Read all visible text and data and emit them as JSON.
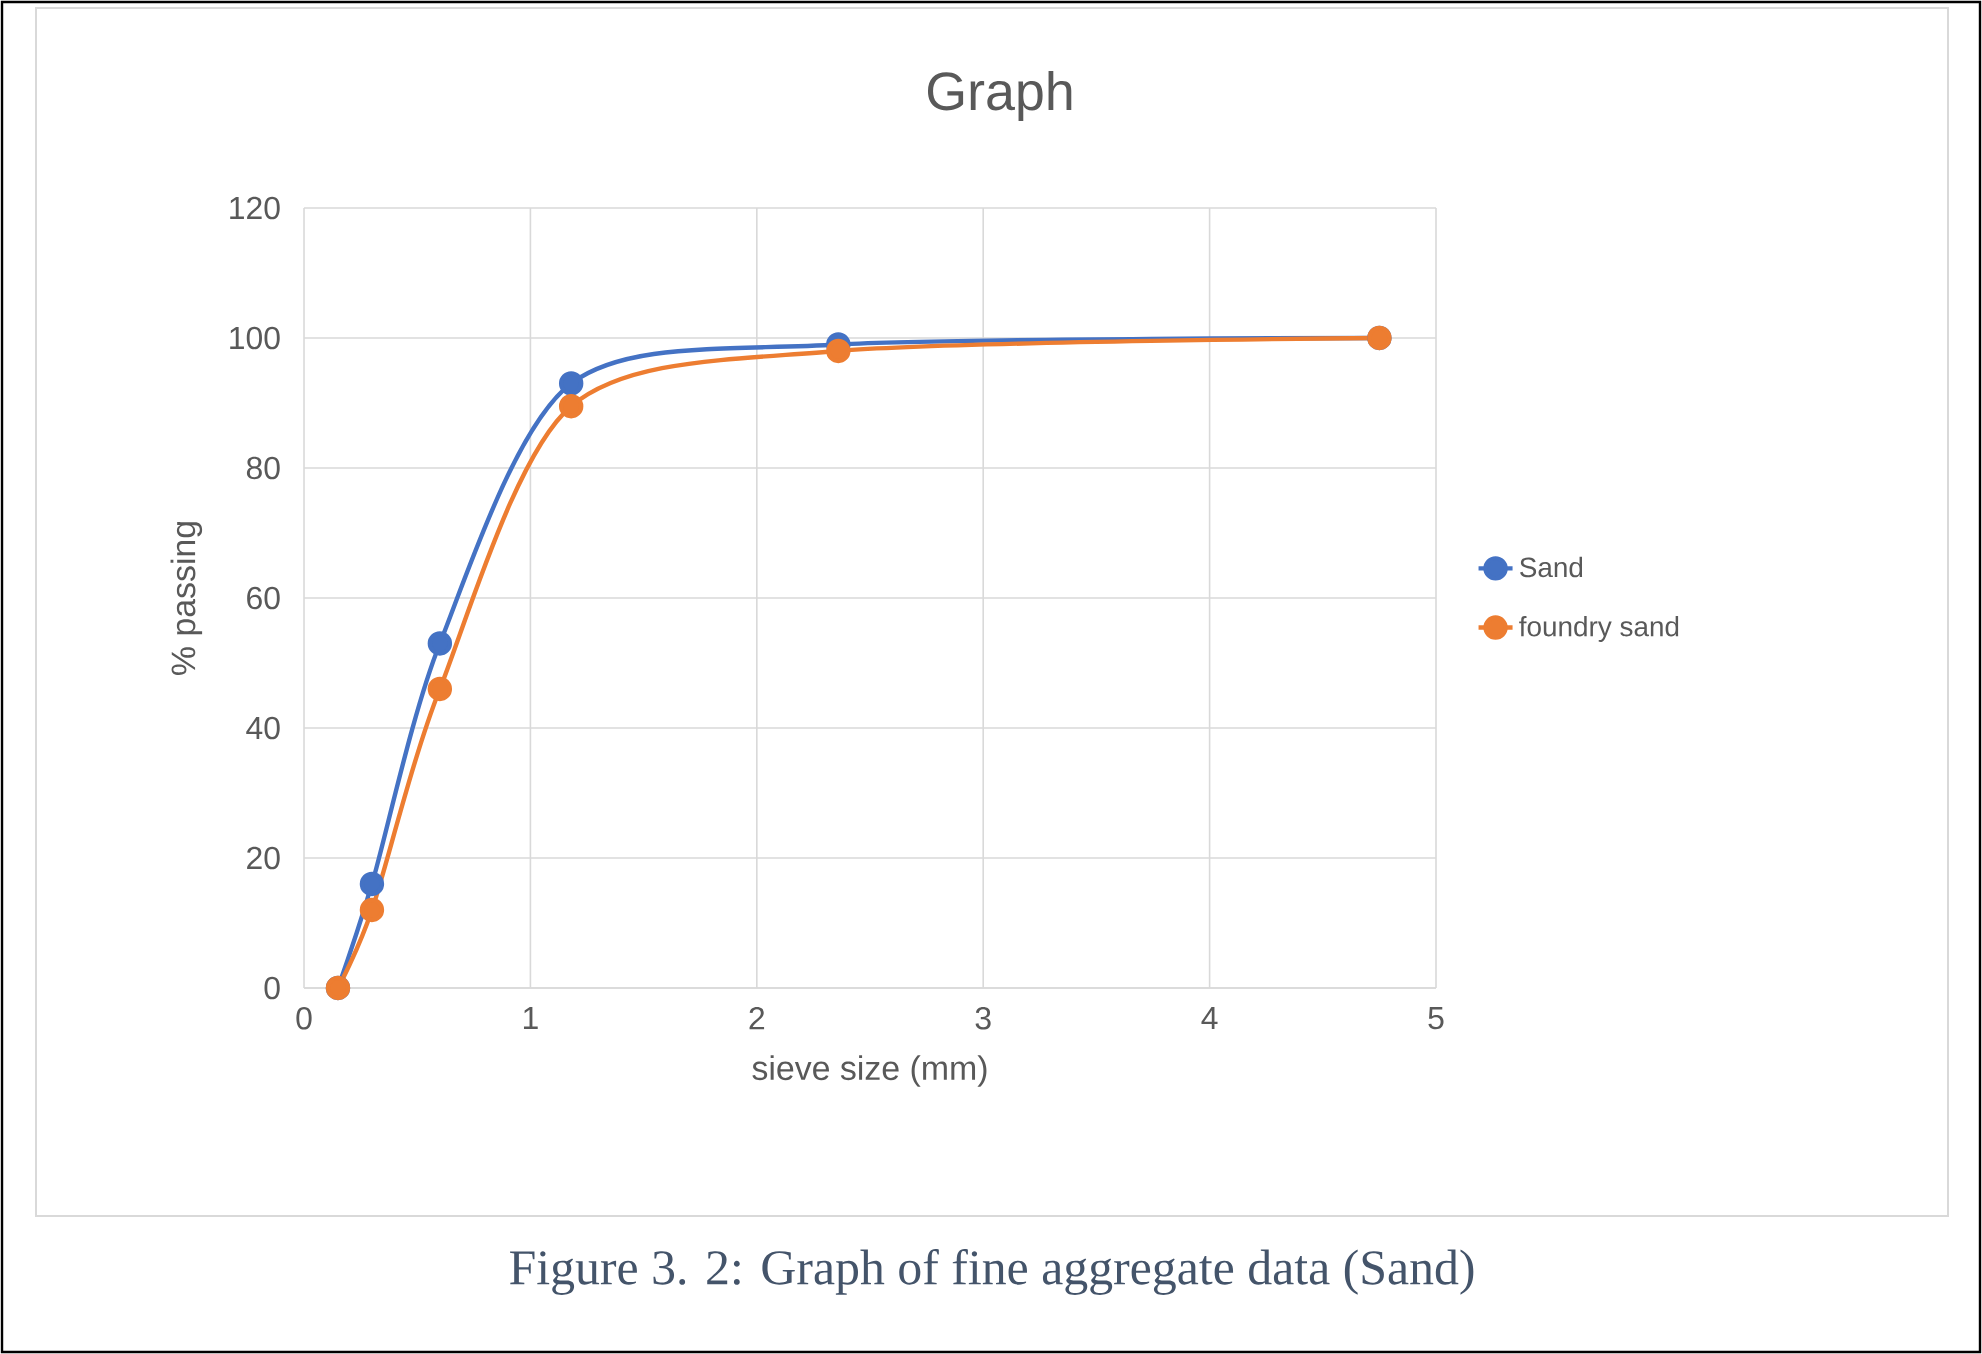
{
  "chart_data": {
    "type": "line",
    "title": "Graph",
    "xlabel": "sieve size (mm)",
    "ylabel": "% passing",
    "series": [
      {
        "name": "Sand",
        "color": "#4472c4",
        "x": [
          0.15,
          0.3,
          0.6,
          1.18,
          2.36,
          4.75
        ],
        "values": [
          0,
          16,
          53,
          93,
          99,
          100
        ]
      },
      {
        "name": "foundry sand",
        "color": "#ed7d31",
        "x": [
          0.15,
          0.3,
          0.6,
          1.18,
          2.36,
          4.75
        ],
        "values": [
          0,
          12,
          46,
          89.5,
          98,
          100
        ]
      }
    ],
    "xlim": [
      0,
      5
    ],
    "xticks": [
      0,
      1,
      2,
      3,
      4,
      5
    ],
    "ylim": [
      0,
      120
    ],
    "yticks": [
      0,
      20,
      40,
      60,
      80,
      100,
      120
    ],
    "grid": true,
    "legend": "right",
    "marker": "circle",
    "line_style": "solid",
    "annotations": [
      "Figure 3. 2: Graph of fine aggregate data (Sand)"
    ]
  }
}
